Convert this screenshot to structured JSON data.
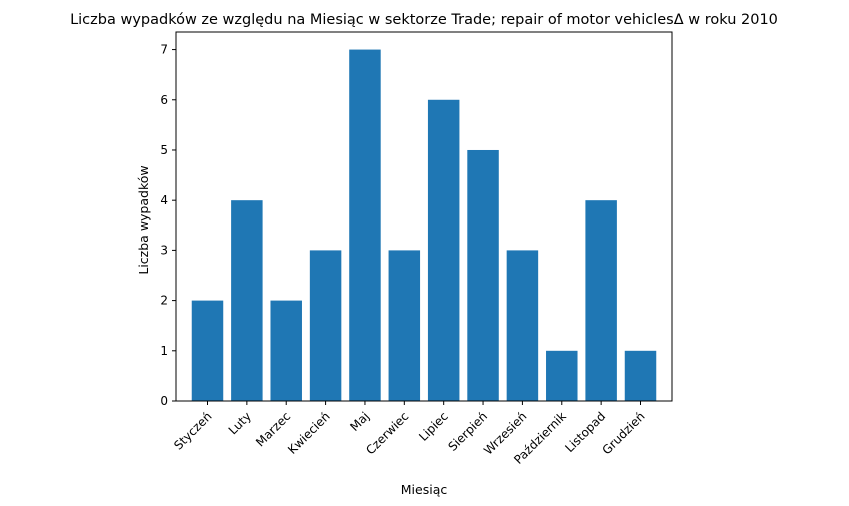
{
  "chart_data": {
    "type": "bar",
    "title": "Liczba wypadków ze względu na Miesiąc w sektorze  Trade; repair of motor vehiclesΔ  w roku 2010",
    "xlabel": "Miesiąc",
    "ylabel": "Liczba wypadków",
    "categories": [
      "Styczeń",
      "Luty",
      "Marzec",
      "Kwiecień",
      "Maj",
      "Czerwiec",
      "Lipiec",
      "Sierpień",
      "Wrzesień",
      "Październik",
      "Listopad",
      "Grudzień"
    ],
    "values": [
      2,
      4,
      2,
      3,
      7,
      3,
      6,
      5,
      3,
      1,
      4,
      1
    ],
    "yticks": [
      0,
      1,
      2,
      3,
      4,
      5,
      6,
      7
    ],
    "ylim": [
      0,
      7.35
    ],
    "grid": false,
    "legend": "none",
    "bar_color": "#1f77b4"
  }
}
